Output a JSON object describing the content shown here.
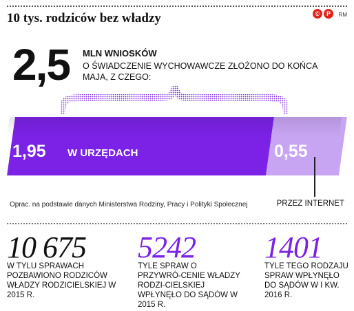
{
  "header": {
    "title": "10 tys. rodziców bez władzy",
    "logo_text": "©P",
    "author": "RM"
  },
  "total": {
    "value": "2,5",
    "unit": "MLN WNIOSKÓW",
    "description": "O ŚWIADCZENIE WYCHOWAWCZE ZŁOŻONO DO KOŃCA MAJA, Z CZEGO:"
  },
  "source": "Oprac. na podstawie danych Ministerstwa Rodziny, Pracy i Polityki Społecznej",
  "chart_data": {
    "type": "bar",
    "orientation": "horizontal-stacked",
    "categories": [
      "W URZĘDACH",
      "PRZEZ INTERNET"
    ],
    "values": [
      1.95,
      0.55
    ],
    "value_labels": [
      "1,95",
      "0,55"
    ],
    "total": 2.5,
    "unit": "MLN WNIOSKÓW",
    "colors": [
      "#7b22e6",
      "#c8a5f3"
    ]
  },
  "stats": [
    {
      "number": "10 675",
      "color": "#111111",
      "text": "W TYLU SPRAWACH POZBAWIONO RODZICÓW WŁADZY RODZICIELSKIEJ W 2015 R."
    },
    {
      "number": "5242",
      "color": "#7b22e6",
      "text": "TYLE SPRAW O PRZYWRÓ-CENIE WŁADZY RODZI-CIELSKIEJ WPŁYNĘŁO DO SĄDÓW W 2015 R."
    },
    {
      "number": "1401",
      "color": "#7b22e6",
      "text": "TYLE TEGO RODZAJU SPRAW WPŁYNĘŁO DO SĄDÓW W I KW. 2016 R."
    }
  ]
}
